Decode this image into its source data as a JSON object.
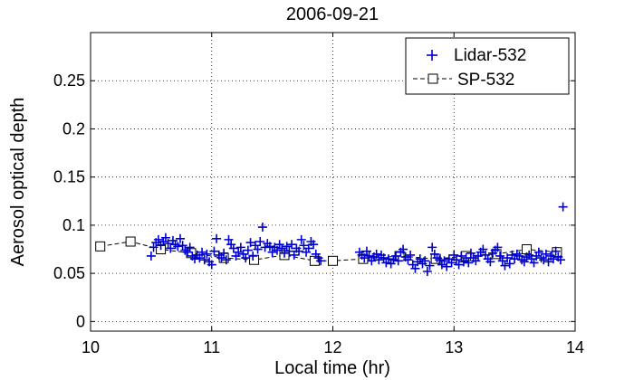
{
  "chart_data": {
    "type": "scatter",
    "title": "2006-09-21",
    "xlabel": "Local time (hr)",
    "ylabel": "Aerosol optical depth",
    "xlim": [
      10,
      14
    ],
    "ylim": [
      -0.01,
      0.3
    ],
    "xticks": [
      "10",
      "11",
      "12",
      "13",
      "14"
    ],
    "xtick_values": [
      10,
      11,
      12,
      13,
      14
    ],
    "yticks": [
      "0",
      "0.05",
      "0.1",
      "0.15",
      "0.2",
      "0.25"
    ],
    "ytick_values": [
      0,
      0.05,
      0.1,
      0.15,
      0.2,
      0.25
    ],
    "grid": true,
    "legend_position": "top-right",
    "colors": {
      "lidar": "#0000cc",
      "sp": "#000000"
    },
    "series": [
      {
        "name": "Lidar-532",
        "marker": "plus",
        "points": [
          [
            10.5,
            0.068
          ],
          [
            10.52,
            0.077
          ],
          [
            10.54,
            0.082
          ],
          [
            10.56,
            0.085
          ],
          [
            10.58,
            0.079
          ],
          [
            10.6,
            0.083
          ],
          [
            10.62,
            0.087
          ],
          [
            10.64,
            0.081
          ],
          [
            10.66,
            0.076
          ],
          [
            10.68,
            0.084
          ],
          [
            10.7,
            0.08
          ],
          [
            10.72,
            0.078
          ],
          [
            10.74,
            0.086
          ],
          [
            10.76,
            0.079
          ],
          [
            10.78,
            0.074
          ],
          [
            10.8,
            0.072
          ],
          [
            10.82,
            0.077
          ],
          [
            10.84,
            0.068
          ],
          [
            10.86,
            0.065
          ],
          [
            10.88,
            0.069
          ],
          [
            10.9,
            0.066
          ],
          [
            10.92,
            0.072
          ],
          [
            10.94,
            0.064
          ],
          [
            10.96,
            0.07
          ],
          [
            10.98,
            0.062
          ],
          [
            11.0,
            0.059
          ],
          [
            11.02,
            0.073
          ],
          [
            11.04,
            0.086
          ],
          [
            11.06,
            0.069
          ],
          [
            11.08,
            0.066
          ],
          [
            11.1,
            0.071
          ],
          [
            11.12,
            0.064
          ],
          [
            11.14,
            0.085
          ],
          [
            11.16,
            0.08
          ],
          [
            11.18,
            0.076
          ],
          [
            11.2,
            0.068
          ],
          [
            11.22,
            0.072
          ],
          [
            11.24,
            0.077
          ],
          [
            11.26,
            0.07
          ],
          [
            11.28,
            0.066
          ],
          [
            11.3,
            0.074
          ],
          [
            11.32,
            0.082
          ],
          [
            11.34,
            0.068
          ],
          [
            11.36,
            0.079
          ],
          [
            11.38,
            0.075
          ],
          [
            11.4,
            0.083
          ],
          [
            11.42,
            0.098
          ],
          [
            11.44,
            0.077
          ],
          [
            11.46,
            0.081
          ],
          [
            11.48,
            0.078
          ],
          [
            11.5,
            0.072
          ],
          [
            11.52,
            0.077
          ],
          [
            11.54,
            0.074
          ],
          [
            11.56,
            0.08
          ],
          [
            11.58,
            0.076
          ],
          [
            11.6,
            0.071
          ],
          [
            11.62,
            0.078
          ],
          [
            11.64,
            0.073
          ],
          [
            11.66,
            0.08
          ],
          [
            11.68,
            0.069
          ],
          [
            11.7,
            0.076
          ],
          [
            11.72,
            0.073
          ],
          [
            11.74,
            0.085
          ],
          [
            11.76,
            0.079
          ],
          [
            11.78,
            0.072
          ],
          [
            11.8,
            0.076
          ],
          [
            11.82,
            0.083
          ],
          [
            11.84,
            0.08
          ],
          [
            11.86,
            0.07
          ],
          [
            11.88,
            0.066
          ],
          [
            11.9,
            0.063
          ],
          [
            12.22,
            0.072
          ],
          [
            12.24,
            0.069
          ],
          [
            12.26,
            0.066
          ],
          [
            12.28,
            0.073
          ],
          [
            12.3,
            0.068
          ],
          [
            12.32,
            0.063
          ],
          [
            12.34,
            0.067
          ],
          [
            12.36,
            0.07
          ],
          [
            12.38,
            0.064
          ],
          [
            12.4,
            0.069
          ],
          [
            12.42,
            0.066
          ],
          [
            12.44,
            0.061
          ],
          [
            12.46,
            0.065
          ],
          [
            12.48,
            0.06
          ],
          [
            12.5,
            0.064
          ],
          [
            12.52,
            0.068
          ],
          [
            12.54,
            0.063
          ],
          [
            12.56,
            0.072
          ],
          [
            12.58,
            0.075
          ],
          [
            12.6,
            0.067
          ],
          [
            12.62,
            0.064
          ],
          [
            12.64,
            0.069
          ],
          [
            12.66,
            0.059
          ],
          [
            12.68,
            0.055
          ],
          [
            12.7,
            0.062
          ],
          [
            12.72,
            0.065
          ],
          [
            12.74,
            0.06
          ],
          [
            12.76,
            0.063
          ],
          [
            12.78,
            0.052
          ],
          [
            12.8,
            0.058
          ],
          [
            12.82,
            0.077
          ],
          [
            12.84,
            0.07
          ],
          [
            12.86,
            0.066
          ],
          [
            12.88,
            0.064
          ],
          [
            12.9,
            0.059
          ],
          [
            12.92,
            0.063
          ],
          [
            12.94,
            0.057
          ],
          [
            12.96,
            0.065
          ],
          [
            12.98,
            0.061
          ],
          [
            13.0,
            0.069
          ],
          [
            13.02,
            0.064
          ],
          [
            13.04,
            0.059
          ],
          [
            13.06,
            0.068
          ],
          [
            13.08,
            0.062
          ],
          [
            13.1,
            0.066
          ],
          [
            13.12,
            0.061
          ],
          [
            13.14,
            0.071
          ],
          [
            13.16,
            0.066
          ],
          [
            13.18,
            0.063
          ],
          [
            13.2,
            0.068
          ],
          [
            13.22,
            0.072
          ],
          [
            13.24,
            0.075
          ],
          [
            13.26,
            0.069
          ],
          [
            13.28,
            0.065
          ],
          [
            13.3,
            0.062
          ],
          [
            13.32,
            0.071
          ],
          [
            13.34,
            0.074
          ],
          [
            13.36,
            0.077
          ],
          [
            13.38,
            0.068
          ],
          [
            13.4,
            0.063
          ],
          [
            13.42,
            0.058
          ],
          [
            13.44,
            0.066
          ],
          [
            13.46,
            0.06
          ],
          [
            13.48,
            0.069
          ],
          [
            13.5,
            0.065
          ],
          [
            13.52,
            0.07
          ],
          [
            13.54,
            0.068
          ],
          [
            13.56,
            0.064
          ],
          [
            13.58,
            0.062
          ],
          [
            13.6,
            0.067
          ],
          [
            13.62,
            0.069
          ],
          [
            13.64,
            0.065
          ],
          [
            13.66,
            0.061
          ],
          [
            13.68,
            0.068
          ],
          [
            13.7,
            0.072
          ],
          [
            13.72,
            0.066
          ],
          [
            13.74,
            0.064
          ],
          [
            13.76,
            0.07
          ],
          [
            13.78,
            0.062
          ],
          [
            13.8,
            0.068
          ],
          [
            13.82,
            0.065
          ],
          [
            13.84,
            0.073
          ],
          [
            13.86,
            0.067
          ],
          [
            13.88,
            0.064
          ],
          [
            13.9,
            0.119
          ]
        ]
      },
      {
        "name": "SP-532",
        "marker": "square",
        "line": "dashed",
        "points": [
          [
            10.08,
            0.078
          ],
          [
            10.33,
            0.083
          ],
          [
            10.58,
            0.075
          ],
          [
            10.83,
            0.071
          ],
          [
            11.1,
            0.066
          ],
          [
            11.35,
            0.064
          ],
          [
            11.6,
            0.069
          ],
          [
            11.85,
            0.063
          ],
          [
            12.0,
            0.063
          ],
          [
            12.25,
            0.065
          ],
          [
            12.55,
            0.068
          ],
          [
            12.85,
            0.065
          ],
          [
            13.1,
            0.068
          ],
          [
            13.35,
            0.07
          ],
          [
            13.6,
            0.075
          ],
          [
            13.85,
            0.072
          ]
        ]
      }
    ]
  }
}
